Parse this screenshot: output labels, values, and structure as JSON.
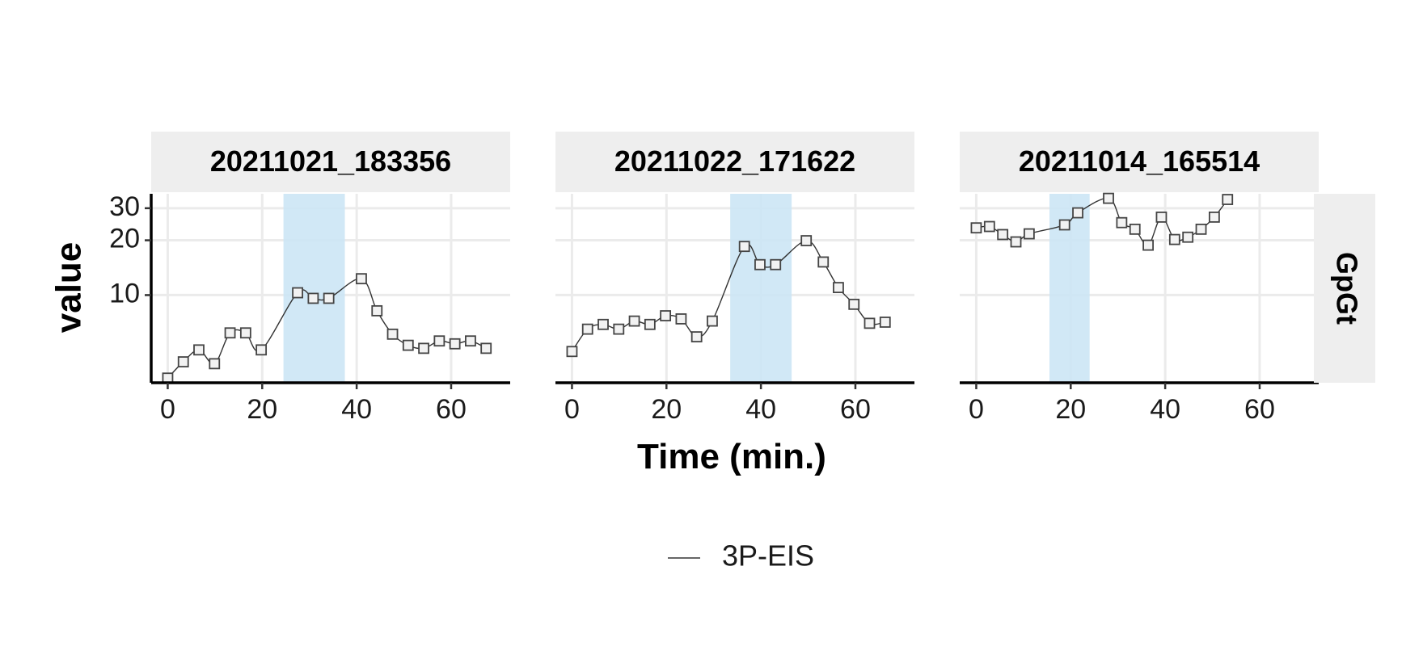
{
  "chart_data": {
    "type": "line",
    "ylabel": "value",
    "xlabel": "Time (min.)",
    "facet_row_label": "GpGt",
    "x_ticks": [
      0,
      20,
      40,
      60
    ],
    "y_ticks": [
      10,
      20,
      30
    ],
    "y_scale": "log",
    "ylim": [
      3.3,
      36
    ],
    "xlim": [
      -3.5,
      72.5
    ],
    "grid": true,
    "shaded_color": "#cce6f5",
    "line_color": "#333333",
    "marker": "square",
    "legend": {
      "position": "bottom",
      "entries": [
        "3P-EIS"
      ]
    },
    "panels": [
      {
        "title": "20211021_183356",
        "shaded_range": [
          24.5,
          37.5
        ],
        "series": [
          {
            "name": "3P-EIS",
            "x": [
              0,
              3.3,
              6.6,
              9.9,
              13.2,
              16.5,
              19.8,
              27.5,
              30.8,
              34.1,
              41,
              44.3,
              47.6,
              50.9,
              54.2,
              57.5,
              60.8,
              64.1,
              67.4
            ],
            "y": [
              3.5,
              4.3,
              5.0,
              4.2,
              6.2,
              6.2,
              5.0,
              10.3,
              9.6,
              9.6,
              12.3,
              8.2,
              6.1,
              5.3,
              5.1,
              5.6,
              5.4,
              5.6,
              5.1
            ]
          }
        ]
      },
      {
        "title": "20211022_171622",
        "shaded_range": [
          33.5,
          46.5
        ],
        "series": [
          {
            "name": "3P-EIS",
            "x": [
              0,
              3.3,
              6.6,
              9.9,
              13.2,
              16.5,
              19.8,
              23.1,
              26.4,
              29.7,
              36.5,
              39.8,
              43.1,
              49.6,
              53.2,
              56.4,
              59.7,
              63,
              66.3
            ],
            "y": [
              4.9,
              6.5,
              6.9,
              6.5,
              7.2,
              6.9,
              7.7,
              7.4,
              5.9,
              7.2,
              18.5,
              14.7,
              14.7,
              19.9,
              15.2,
              11.0,
              8.9,
              7.0,
              7.1
            ]
          }
        ]
      },
      {
        "title": "20211014_165514",
        "shaded_range": [
          15.5,
          24
        ],
        "series": [
          {
            "name": "3P-EIS",
            "x": [
              0,
              2.8,
              5.6,
              8.4,
              11.2,
              18.7,
              21.5,
              28,
              30.8,
              33.6,
              36.4,
              39.2,
              42,
              44.8,
              47.6,
              50.4,
              53.2
            ],
            "y": [
              23.4,
              23.8,
              21.5,
              19.6,
              21.7,
              24.3,
              28.3,
              34.0,
              25.0,
              23.0,
              18.8,
              26.8,
              20.2,
              20.8,
              23.0,
              26.8,
              33.5
            ]
          }
        ]
      }
    ]
  }
}
